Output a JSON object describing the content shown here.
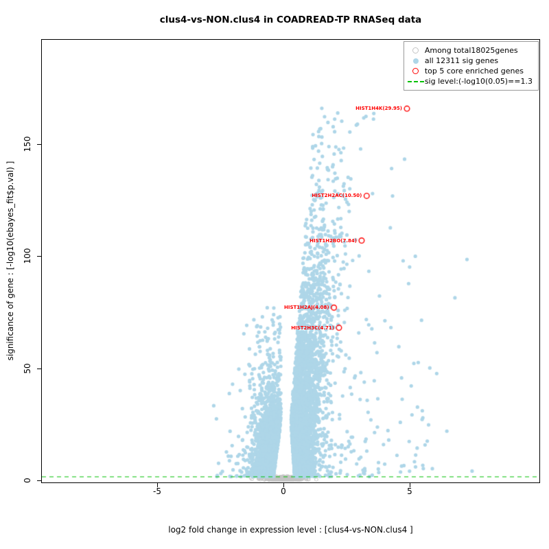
{
  "chart_data": {
    "type": "scatter",
    "subtype": "volcano",
    "title": "clus4-vs-NON.clus4 in COADREAD-TP RNASeq data",
    "xlabel": "log2 fold change in expression level : [clus4-vs-NON.clus4 ]",
    "ylabel": "significance of gene : [-log10(ebayes_fit$p.val) ]",
    "xlim": [
      -9.6,
      10.16
    ],
    "ylim": [
      -1.2,
      196.8
    ],
    "xticks": [
      -5,
      0,
      5
    ],
    "yticks": [
      0,
      50,
      100,
      150
    ],
    "grid": false,
    "legend_position": "top-right",
    "sig_level_y": 1.3,
    "sig_level_color": "#00c000",
    "enriched_color": "#ff0000",
    "totals": {
      "all_genes": 18025,
      "sig_genes": 12311,
      "core_enriched_genes": 5
    },
    "legend": [
      {
        "label": "Among total18025genes",
        "marker": "open-circle",
        "color": "#c4c4c4"
      },
      {
        "label": "all 12311 sig genes",
        "marker": "filled-circle",
        "color": "#aed6e8"
      },
      {
        "label": "top 5 core enriched genes",
        "marker": "open-circle",
        "color": "#ff0000"
      },
      {
        "label": "sig level:(-log10(0.05)==1.3",
        "marker": "dashed-line",
        "color": "#00c000"
      }
    ],
    "enriched_genes": [
      {
        "label": "HIST1H4K(29.95)",
        "x": 4.9,
        "y": 166
      },
      {
        "label": "HIST2H2AC(10.50)",
        "x": 3.3,
        "y": 127
      },
      {
        "label": "HIST1H2BO(7.84)",
        "x": 3.1,
        "y": 107
      },
      {
        "label": "HIST1H2AJ(4.08)",
        "x": 2.0,
        "y": 77
      },
      {
        "label": "HIST2H3C(4.71)",
        "x": 2.2,
        "y": 68
      }
    ],
    "point_generation": {
      "seed": 1337,
      "n_sig": 6500,
      "n_background": 650,
      "sig_color": "#aed6e8",
      "background_color": "#c4c4c4",
      "point_radius": 2.6,
      "left_fraction": 0.37,
      "left_y_mean": 15,
      "left_y_max": 78,
      "right_y_mean": 34,
      "right_y_max": 168
    }
  }
}
